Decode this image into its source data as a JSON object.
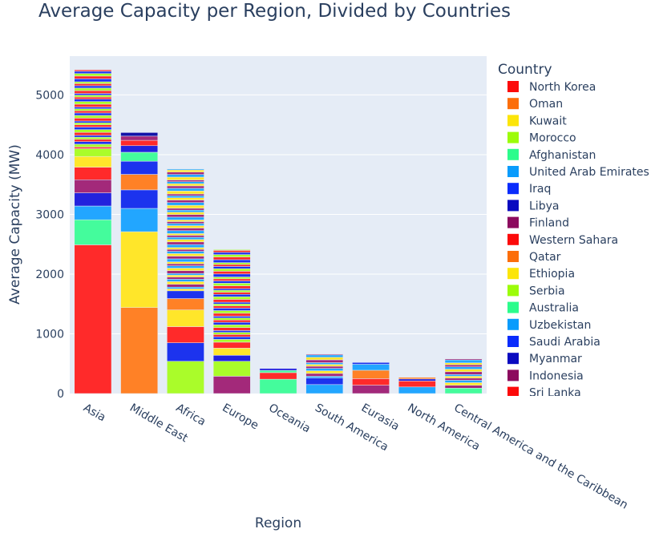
{
  "chart_data": {
    "type": "bar",
    "stacked": true,
    "title": "Average Capacity per Region, Divided by Countries",
    "xlabel": "Region",
    "ylabel": "Average Capacity (MW)",
    "ylim": [
      0,
      5650
    ],
    "yticks": [
      0,
      1000,
      2000,
      3000,
      4000,
      5000
    ],
    "grid": true,
    "legend_title": "Country",
    "legend_placement": "right",
    "categories": [
      "Asia",
      "Middle East",
      "Africa",
      "Europe",
      "Oceania",
      "South America",
      "Eurasia",
      "North America",
      "Central America and the Caribbean"
    ],
    "totals": [
      5420,
      4370,
      3760,
      2410,
      420,
      660,
      520,
      270,
      580
    ],
    "named_segments": [
      [
        {
          "country": "North Korea",
          "value": 2490,
          "color": "#ff2a2a"
        },
        {
          "country": "Afghanistan",
          "value": 420,
          "color": "#44fc9c"
        },
        {
          "country": "United Arab Emirates",
          "value": 230,
          "color": "#22a6ff"
        },
        {
          "country": "Iraq",
          "value": 220,
          "color": "#2222dd"
        },
        {
          "country": "Finland",
          "value": 220,
          "color": "#a3297a"
        },
        {
          "country": "Western Sahara",
          "value": 210,
          "color": "#ff2a2a"
        },
        {
          "country": "Ethiopia",
          "value": 180,
          "color": "#ffe62a"
        },
        {
          "country": "Serbia",
          "value": 130,
          "color": "#aafc2a"
        }
      ],
      [
        {
          "country": "Oman",
          "value": 1440,
          "color": "#ff8126"
        },
        {
          "country": "Kuwait",
          "value": 1270,
          "color": "#ffe62a"
        },
        {
          "country": "Uzbekistan",
          "value": 390,
          "color": "#22a6ff"
        },
        {
          "country": "Iraq",
          "value": 310,
          "color": "#1c33ee"
        },
        {
          "country": "Qatar",
          "value": 260,
          "color": "#ff8126"
        },
        {
          "country": "Saudi Arabia",
          "value": 220,
          "color": "#1c33ee"
        },
        {
          "country": "Australia",
          "value": 150,
          "color": "#44fc9c"
        },
        {
          "country": "Myanmar",
          "value": 110,
          "color": "#2222dd"
        },
        {
          "country": "Sri Lanka",
          "value": 90,
          "color": "#ff2a2a"
        },
        {
          "country": "Indonesia",
          "value": 70,
          "color": "#a3297a"
        },
        {
          "country": "Libya",
          "value": 60,
          "color": "#1313a8"
        }
      ],
      [
        {
          "country": "Morocco",
          "value": 540,
          "color": "#aafc2a"
        },
        {
          "country": "Libya",
          "value": 310,
          "color": "#1c33ee"
        },
        {
          "country": "Western Sahara",
          "value": 270,
          "color": "#ff2a2a"
        },
        {
          "country": "Ethiopia",
          "value": 280,
          "color": "#ffe62a"
        },
        {
          "country": "Qatar",
          "value": 190,
          "color": "#ff8126"
        },
        {
          "country": "Saudi Arabia",
          "value": 130,
          "color": "#1c33ee"
        }
      ],
      [
        {
          "country": "Finland",
          "value": 290,
          "color": "#a3297a"
        },
        {
          "country": "Serbia",
          "value": 250,
          "color": "#aafc2a"
        },
        {
          "country": "Myanmar",
          "value": 100,
          "color": "#2222dd"
        },
        {
          "country": "Ethiopia",
          "value": 120,
          "color": "#ffe62a"
        },
        {
          "country": "Western Sahara",
          "value": 100,
          "color": "#ff2a2a"
        }
      ],
      [
        {
          "country": "Australia",
          "value": 240,
          "color": "#44fc9c"
        },
        {
          "country": "Western Sahara",
          "value": 110,
          "color": "#ff2a2a"
        }
      ],
      [
        {
          "country": "Uzbekistan",
          "value": 150,
          "color": "#22a6ff"
        },
        {
          "country": "Saudi Arabia",
          "value": 110,
          "color": "#1c33ee"
        }
      ],
      [
        {
          "country": "Indonesia",
          "value": 140,
          "color": "#a3297a"
        },
        {
          "country": "Western Sahara",
          "value": 110,
          "color": "#ff2a2a"
        },
        {
          "country": "Qatar",
          "value": 140,
          "color": "#ff8126"
        },
        {
          "country": "Uzbekistan",
          "value": 100,
          "color": "#22a6ff"
        }
      ],
      [
        {
          "country": "United Arab Emirates",
          "value": 110,
          "color": "#22a6ff"
        },
        {
          "country": "Western Sahara",
          "value": 100,
          "color": "#ff2a2a"
        }
      ],
      [
        {
          "country": "Afghanistan",
          "value": 90,
          "color": "#44fc9c"
        }
      ]
    ],
    "legend": [
      {
        "name": "North Korea",
        "color": "#fc0a0a"
      },
      {
        "name": "Oman",
        "color": "#fc6e0a"
      },
      {
        "name": "Kuwait",
        "color": "#fce50a"
      },
      {
        "name": "Morocco",
        "color": "#9cfc0a"
      },
      {
        "name": "Afghanistan",
        "color": "#2cfc8c"
      },
      {
        "name": "United Arab Emirates",
        "color": "#0a9cfc"
      },
      {
        "name": "Iraq",
        "color": "#0a2cfc"
      },
      {
        "name": "Libya",
        "color": "#0a0ac0"
      },
      {
        "name": "Finland",
        "color": "#8c0a5e"
      },
      {
        "name": "Western Sahara",
        "color": "#fc0a0a"
      },
      {
        "name": "Qatar",
        "color": "#fc6e0a"
      },
      {
        "name": "Ethiopia",
        "color": "#fce50a"
      },
      {
        "name": "Serbia",
        "color": "#9cfc0a"
      },
      {
        "name": "Australia",
        "color": "#2cfc8c"
      },
      {
        "name": "Uzbekistan",
        "color": "#0a9cfc"
      },
      {
        "name": "Saudi Arabia",
        "color": "#0a2cfc"
      },
      {
        "name": "Myanmar",
        "color": "#0a0ac0"
      },
      {
        "name": "Indonesia",
        "color": "#8c0a5e"
      },
      {
        "name": "Sri Lanka",
        "color": "#fc0a0a"
      }
    ],
    "colors": {
      "plot_bg": "#e5ecf6",
      "grid": "#ffffff",
      "text": "#2a3f5f"
    },
    "palette": [
      "#ff2a2a",
      "#ff8126",
      "#ffe62a",
      "#aafc2a",
      "#44fc9c",
      "#22a6ff",
      "#1c33ee",
      "#2222dd",
      "#a3297a"
    ]
  }
}
